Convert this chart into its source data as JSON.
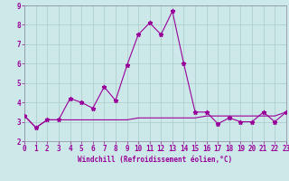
{
  "x": [
    0,
    1,
    2,
    3,
    4,
    5,
    6,
    7,
    8,
    9,
    10,
    11,
    12,
    13,
    14,
    15,
    16,
    17,
    18,
    19,
    20,
    21,
    22,
    23
  ],
  "y_line1": [
    3.3,
    2.7,
    3.1,
    3.1,
    4.2,
    4.0,
    3.7,
    4.8,
    4.1,
    5.9,
    7.5,
    8.1,
    7.5,
    8.7,
    6.0,
    3.5,
    3.5,
    2.9,
    3.2,
    3.0,
    3.0,
    3.5,
    3.0,
    3.5
  ],
  "y_line2": [
    3.3,
    2.7,
    3.1,
    3.1,
    3.1,
    3.1,
    3.1,
    3.1,
    3.1,
    3.1,
    3.2,
    3.2,
    3.2,
    3.2,
    3.2,
    3.2,
    3.3,
    3.3,
    3.3,
    3.3,
    3.3,
    3.3,
    3.3,
    3.5
  ],
  "line_color": "#990099",
  "bg_color": "#cce8e8",
  "grid_color": "#aacccc",
  "xlabel": "Windchill (Refroidissement éolien,°C)",
  "ylim": [
    2,
    9
  ],
  "xlim": [
    0,
    23
  ],
  "yticks": [
    2,
    3,
    4,
    5,
    6,
    7,
    8,
    9
  ],
  "xticks": [
    0,
    1,
    2,
    3,
    4,
    5,
    6,
    7,
    8,
    9,
    10,
    11,
    12,
    13,
    14,
    15,
    16,
    17,
    18,
    19,
    20,
    21,
    22,
    23
  ],
  "tick_fontsize": 5.5,
  "xlabel_fontsize": 5.5
}
